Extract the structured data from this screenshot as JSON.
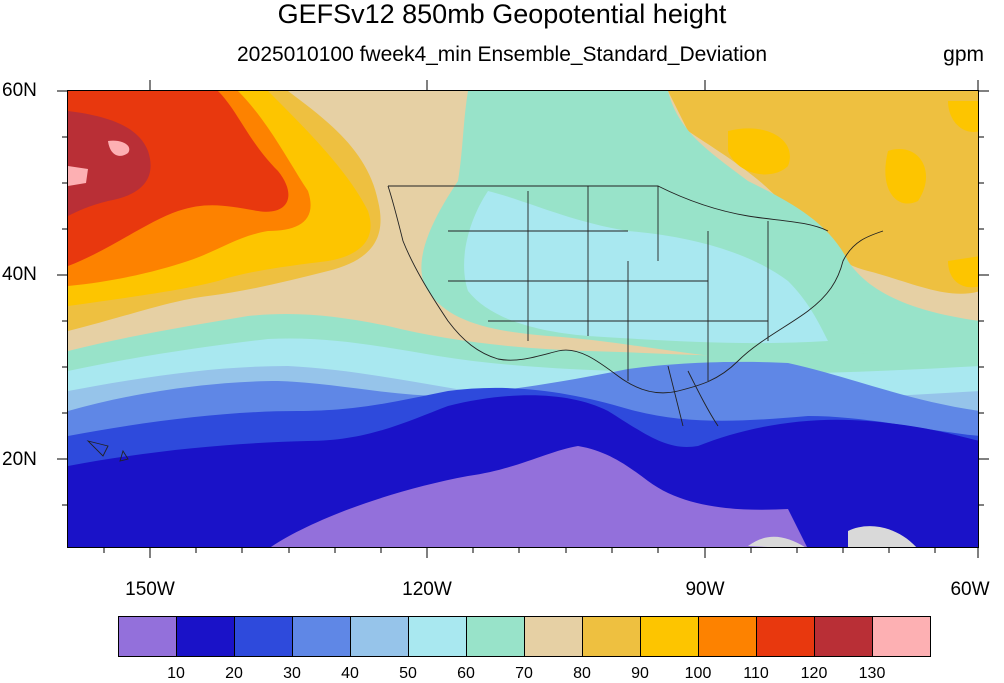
{
  "title": "GEFSv12 850mb Geopotential height",
  "subtitle": "2025010100 fweek4_min Ensemble_Standard_Deviation",
  "units": "gpm",
  "map": {
    "lon_range": [
      -160,
      -60
    ],
    "lat_range": [
      10,
      60
    ],
    "lat_ticks": [
      {
        "value": 60,
        "label": "60N"
      },
      {
        "value": 40,
        "label": "40N"
      },
      {
        "value": 20,
        "label": "20N"
      }
    ],
    "lon_ticks": [
      {
        "value": -150,
        "label": "150W"
      },
      {
        "value": -120,
        "label": "120W"
      },
      {
        "value": -90,
        "label": "90W"
      },
      {
        "value": -60,
        "label": "60W"
      }
    ]
  },
  "colorbar": {
    "colors": [
      "#9370db",
      "#1a12c8",
      "#2e4adc",
      "#5f87e6",
      "#96c4ea",
      "#a9e8f0",
      "#98e3c9",
      "#e6d0a4",
      "#eec040",
      "#fdc500",
      "#fd8200",
      "#e8380e",
      "#b92f36",
      "#fdb0b3"
    ],
    "labels": [
      "10",
      "20",
      "30",
      "40",
      "50",
      "60",
      "70",
      "80",
      "90",
      "100",
      "110",
      "120",
      "130"
    ]
  }
}
